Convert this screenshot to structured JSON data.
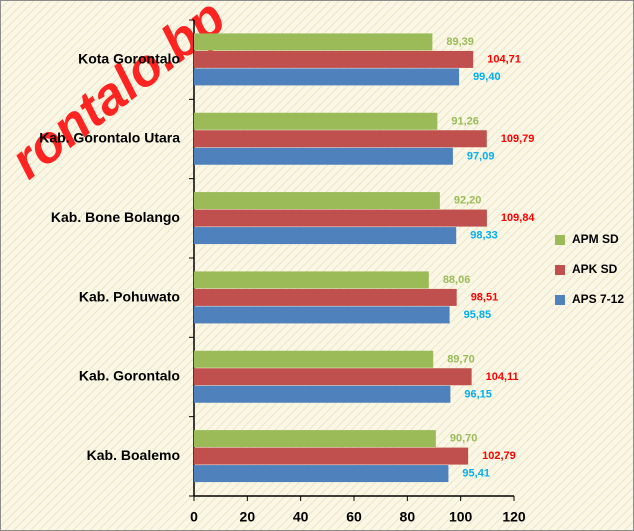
{
  "chart_data": {
    "type": "hbar",
    "watermark": "rontalo.bp",
    "categories": [
      "Kota Gorontalo",
      "Kab. Gorontalo Utara",
      "Kab. Bone Bolango",
      "Kab. Pohuwato",
      "Kab. Gorontalo",
      "Kab. Boalemo"
    ],
    "series": [
      {
        "name": "APM SD",
        "color": "#9bbb59",
        "label_color": "#9bbb59",
        "values": [
          89.39,
          91.26,
          92.2,
          88.06,
          89.7,
          90.7
        ],
        "value_labels": [
          "89,39",
          "91,26",
          "92,20",
          "88,06",
          "89,70",
          "90,70"
        ]
      },
      {
        "name": "APK SD",
        "color": "#c0504d",
        "label_color": "#ff0000",
        "values": [
          104.71,
          109.79,
          109.84,
          98.51,
          104.11,
          102.79
        ],
        "value_labels": [
          "104,71",
          "109,79",
          "109,84",
          "98,51",
          "104,11",
          "102,79"
        ]
      },
      {
        "name": "APS 7-12",
        "color": "#4f81bd",
        "label_color": "#00b0f0",
        "values": [
          99.4,
          97.09,
          98.33,
          95.85,
          96.15,
          95.41
        ],
        "value_labels": [
          "99,40",
          "97,09",
          "98,33",
          "95,85",
          "96,15",
          "95,41"
        ]
      }
    ],
    "xlim": [
      0,
      120
    ],
    "xticks": [
      0,
      20,
      40,
      60,
      80,
      100,
      120
    ],
    "legend": "right"
  }
}
